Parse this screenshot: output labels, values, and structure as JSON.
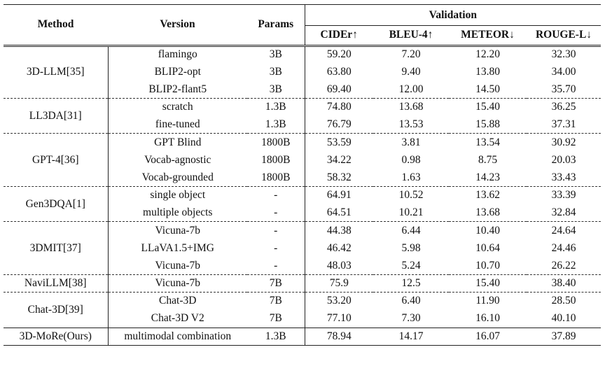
{
  "header": {
    "method": "Method",
    "version": "Version",
    "params": "Params",
    "group": "Validation",
    "metrics": [
      "CIDEr↑",
      "BLEU-4↑",
      "METEOR↓",
      "ROUGE-L↓"
    ]
  },
  "groups": [
    {
      "method": "3D-LLM[35]",
      "rows": [
        {
          "version": "flamingo",
          "params": "3B",
          "cider": "59.20",
          "bleu": "7.20",
          "meteor": "12.20",
          "rouge": "32.30"
        },
        {
          "version": "BLIP2-opt",
          "params": "3B",
          "cider": "63.80",
          "bleu": "9.40",
          "meteor": "13.80",
          "rouge": "34.00"
        },
        {
          "version": "BLIP2-flant5",
          "params": "3B",
          "cider": "69.40",
          "bleu": "12.00",
          "meteor": "14.50",
          "rouge": "35.70"
        }
      ]
    },
    {
      "method": "LL3DA[31]",
      "rows": [
        {
          "version": "scratch",
          "params": "1.3B",
          "cider": "74.80",
          "bleu": "13.68",
          "meteor": "15.40",
          "rouge": "36.25"
        },
        {
          "version": "fine-tuned",
          "params": "1.3B",
          "cider": "76.79",
          "bleu": "13.53",
          "meteor": "15.88",
          "rouge": "37.31"
        }
      ]
    },
    {
      "method": "GPT-4[36]",
      "rows": [
        {
          "version": "GPT Blind",
          "params": "1800B",
          "cider": "53.59",
          "bleu": "3.81",
          "meteor": "13.54",
          "rouge": "30.92"
        },
        {
          "version": "Vocab-agnostic",
          "params": "1800B",
          "cider": "34.22",
          "bleu": "0.98",
          "meteor": "8.75",
          "rouge": "20.03"
        },
        {
          "version": "Vocab-grounded",
          "params": "1800B",
          "cider": "58.32",
          "bleu": "1.63",
          "meteor": "14.23",
          "rouge": "33.43"
        }
      ]
    },
    {
      "method": "Gen3DQA[1]",
      "rows": [
        {
          "version": "single object",
          "params": "-",
          "cider": "64.91",
          "bleu": "10.52",
          "meteor": "13.62",
          "rouge": "33.39"
        },
        {
          "version": "multiple objects",
          "params": "-",
          "cider": "64.51",
          "bleu": "10.21",
          "meteor": "13.68",
          "rouge": "32.84"
        }
      ]
    },
    {
      "method": "3DMIT[37]",
      "rows": [
        {
          "version": "Vicuna-7b",
          "params": "-",
          "cider": "44.38",
          "bleu": "6.44",
          "meteor": "10.40",
          "rouge": "24.64"
        },
        {
          "version": "LLaVA1.5+IMG",
          "params": "-",
          "cider": "46.42",
          "bleu": "5.98",
          "meteor": "10.64",
          "rouge": "24.46"
        },
        {
          "version": "Vicuna-7b",
          "params": "-",
          "cider": "48.03",
          "bleu": "5.24",
          "meteor": "10.70",
          "rouge": "26.22"
        }
      ]
    },
    {
      "method": "NaviLLM[38]",
      "rows": [
        {
          "version": "Vicuna-7b",
          "params": "7B",
          "cider": "75.9",
          "bleu": "12.5",
          "meteor": "15.40",
          "rouge": "38.40"
        }
      ]
    },
    {
      "method": "Chat-3D[39]",
      "rows": [
        {
          "version": "Chat-3D",
          "params": "7B",
          "cider": "53.20",
          "bleu": "6.40",
          "meteor": "11.90",
          "rouge": "28.50"
        },
        {
          "version": "Chat-3D V2",
          "params": "7B",
          "cider": "77.10",
          "bleu": "7.30",
          "meteor": "16.10",
          "rouge": "40.10",
          "bold": [
            "meteor",
            "rouge"
          ]
        }
      ]
    }
  ],
  "ours": {
    "method": "3D-MoRe(Ours)",
    "version": "multimodal combination",
    "params": "1.3B",
    "cider": "78.94",
    "bleu": "14.17",
    "meteor": "16.07",
    "rouge": "37.89",
    "bold": [
      "method",
      "cider",
      "bleu"
    ]
  }
}
